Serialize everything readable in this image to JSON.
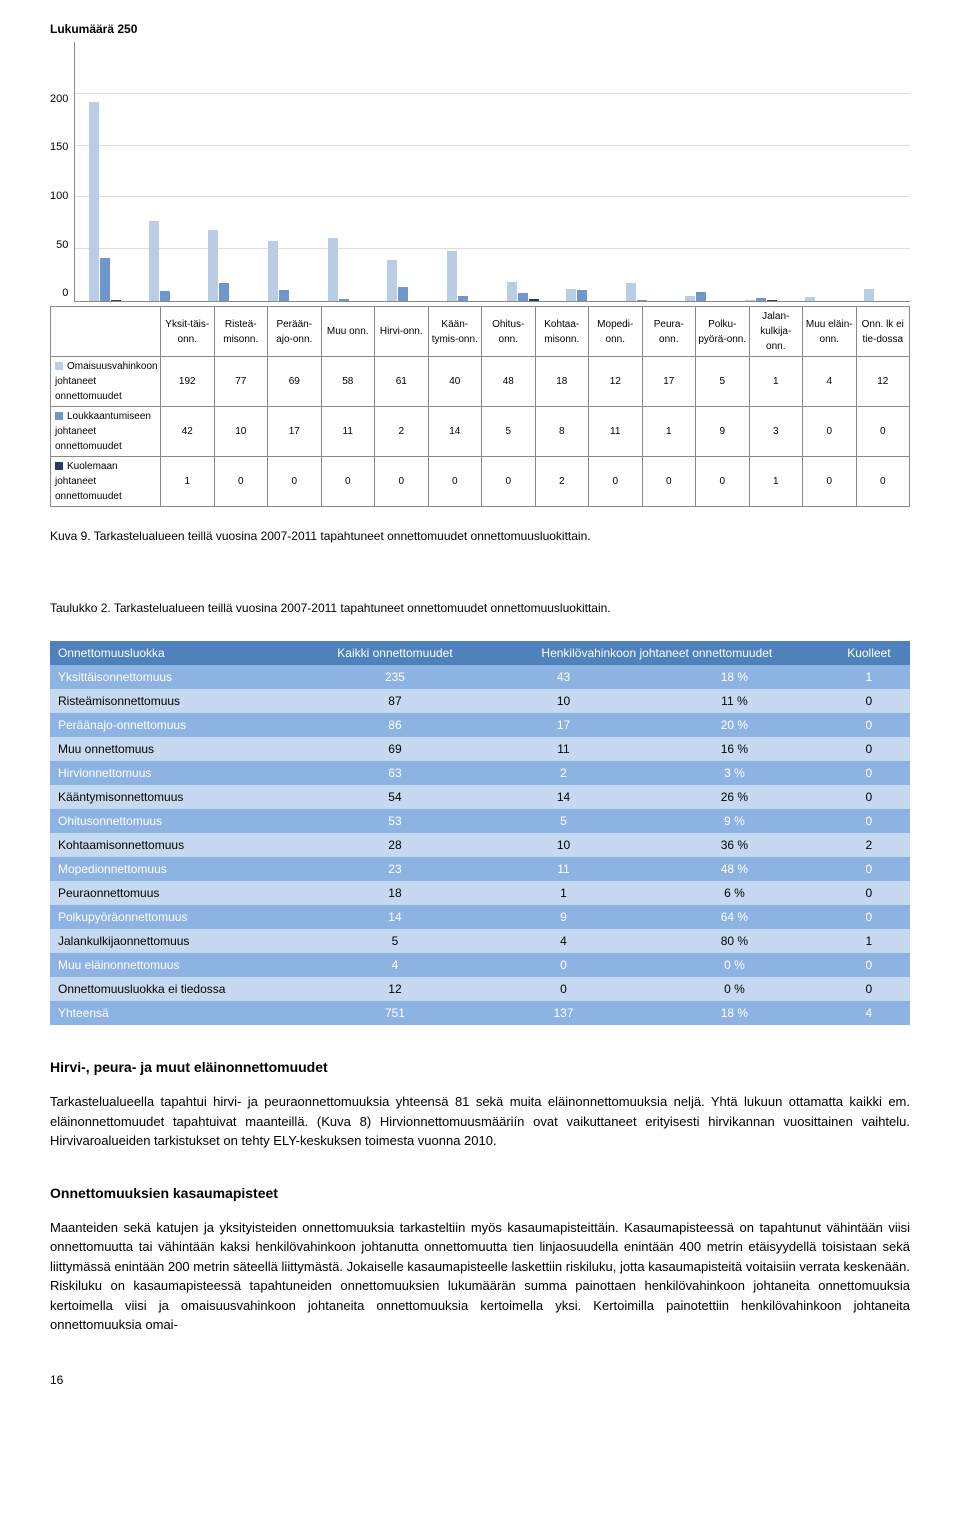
{
  "chart": {
    "axis_title": "Lukumäärä",
    "ylim": 250,
    "yticks": [
      250,
      200,
      150,
      100,
      50,
      0
    ],
    "categories": [
      "Yksit-täis-onn.",
      "Risteä-misonn.",
      "Perään-ajo-onn.",
      "Muu onn.",
      "Hirvi-onn.",
      "Kään-tymis-onn.",
      "Ohitus-onn.",
      "Kohtaa-misonn.",
      "Mopedi-onn.",
      "Peura-onn.",
      "Polku-pyörä-onn.",
      "Jalan-kulkija-onn.",
      "Muu eläin-onn.",
      "Onn. lk ei tie-dossa"
    ],
    "series": [
      {
        "label": "Omaisuusvahinkoon johtaneet onnettomuudet",
        "color": "#b9cde5",
        "values": [
          192,
          77,
          69,
          58,
          61,
          40,
          48,
          18,
          12,
          17,
          5,
          1,
          4,
          12
        ]
      },
      {
        "label": "Loukkaantumiseen johtaneet onnettomuudet",
        "color": "#6f97cc",
        "values": [
          42,
          10,
          17,
          11,
          2,
          14,
          5,
          8,
          11,
          1,
          9,
          3,
          0,
          0
        ]
      },
      {
        "label": "Kuolemaan johtaneet onnettomuudet",
        "color": "#254061",
        "values": [
          1,
          0,
          0,
          0,
          0,
          0,
          0,
          2,
          0,
          0,
          0,
          1,
          0,
          0
        ]
      }
    ],
    "grid_color": "#dddddd",
    "axis_color": "#888888",
    "title_fontsize": 12,
    "tick_fontsize": 11
  },
  "caption_chart": "Kuva 9. Tarkastelualueen teillä vuosina 2007-2011 tapahtuneet onnettomuudet onnettomuusluokittain.",
  "caption_table": "Taulukko 2. Tarkastelualueen teillä vuosina 2007-2011 tapahtuneet onnettomuudet onnettomuusluokittain.",
  "class_table": {
    "header_bg": "#4f81bd",
    "row_dark_bg": "#8db3e2",
    "row_light_bg": "#c6d9f1",
    "columns": [
      "Onnettomuusluokka",
      "Kaikki onnettomuudet",
      "Henkilövahinkoon johtaneet onnettomuudet",
      "",
      "Kuolleet"
    ],
    "rows": [
      {
        "label": "Yksittäisonnettomuus",
        "all": 235,
        "hv": 43,
        "pct": "18 %",
        "dead": 1
      },
      {
        "label": "Risteämisonnettomuus",
        "all": 87,
        "hv": 10,
        "pct": "11 %",
        "dead": 0
      },
      {
        "label": "Peräänajo-onnettomuus",
        "all": 86,
        "hv": 17,
        "pct": "20 %",
        "dead": 0
      },
      {
        "label": "Muu onnettomuus",
        "all": 69,
        "hv": 11,
        "pct": "16 %",
        "dead": 0
      },
      {
        "label": "Hirvionnettomuus",
        "all": 63,
        "hv": 2,
        "pct": "3 %",
        "dead": 0
      },
      {
        "label": "Kääntymisonnettomuus",
        "all": 54,
        "hv": 14,
        "pct": "26 %",
        "dead": 0
      },
      {
        "label": "Ohitusonnettomuus",
        "all": 53,
        "hv": 5,
        "pct": "9 %",
        "dead": 0
      },
      {
        "label": "Kohtaamisonnettomuus",
        "all": 28,
        "hv": 10,
        "pct": "36 %",
        "dead": 2
      },
      {
        "label": "Mopedionnettomuus",
        "all": 23,
        "hv": 11,
        "pct": "48 %",
        "dead": 0
      },
      {
        "label": "Peuraonnettomuus",
        "all": 18,
        "hv": 1,
        "pct": "6 %",
        "dead": 0
      },
      {
        "label": "Polkupyöräonnettomuus",
        "all": 14,
        "hv": 9,
        "pct": "64 %",
        "dead": 0
      },
      {
        "label": "Jalankulkijaonnettomuus",
        "all": 5,
        "hv": 4,
        "pct": "80 %",
        "dead": 1
      },
      {
        "label": "Muu eläinonnettomuus",
        "all": 4,
        "hv": 0,
        "pct": "0 %",
        "dead": 0
      },
      {
        "label": "Onnettomuusluokka ei tiedossa",
        "all": 12,
        "hv": 0,
        "pct": "0 %",
        "dead": 0
      },
      {
        "label": "Yhteensä",
        "all": 751,
        "hv": 137,
        "pct": "18 %",
        "dead": 4
      }
    ]
  },
  "heading_hirvi": "Hirvi-, peura- ja muut eläinonnettomuudet",
  "para_hirvi": "Tarkastelualueella tapahtui hirvi- ja peuraonnettomuuksia yhteensä 81 sekä muita eläinonnettomuuksia neljä. Yhtä lukuun ottamatta kaikki em. eläinonnettomuudet tapahtuivat maanteillä. (Kuva 8) Hirvionnettomuusmääriín ovat vaikuttaneet erityisesti hirvikannan vuosittainen vaihtelu. Hirvivaroalueiden tarkistukset on tehty ELY-keskuksen toimesta vuonna 2010.",
  "heading_kasauma": "Onnettomuuksien kasaumapisteet",
  "para_kasauma": "Maanteiden sekä katujen ja yksityisteiden onnettomuuksia tarkasteltiin myös kasaumapisteittäin. Kasaumapisteessä on tapahtunut vähintään viisi onnettomuutta tai vähintään kaksi henkilövahinkoon johtanutta onnettomuutta tien linjaosuudella enintään 400 metrin etäisyydellä toisistaan sekä liittymässä enintään 200 metrin säteellä liittymästä. Jokaiselle kasaumapisteelle laskettiin riskiluku, jotta kasaumapisteitä voitaisiin verrata keskenään. Riskiluku on kasaumapisteessä tapahtuneiden onnettomuuksien lukumäärän summa painottaen henkilövahinkoon johtaneita onnettomuuksia kertoimella viisi ja omaisuusvahinkoon johtaneita onnettomuuksia kertoimella yksi. Kertoimilla painotettiin henkilövahinkoon johtaneita onnettomuuksia omai-",
  "page_number": "16"
}
